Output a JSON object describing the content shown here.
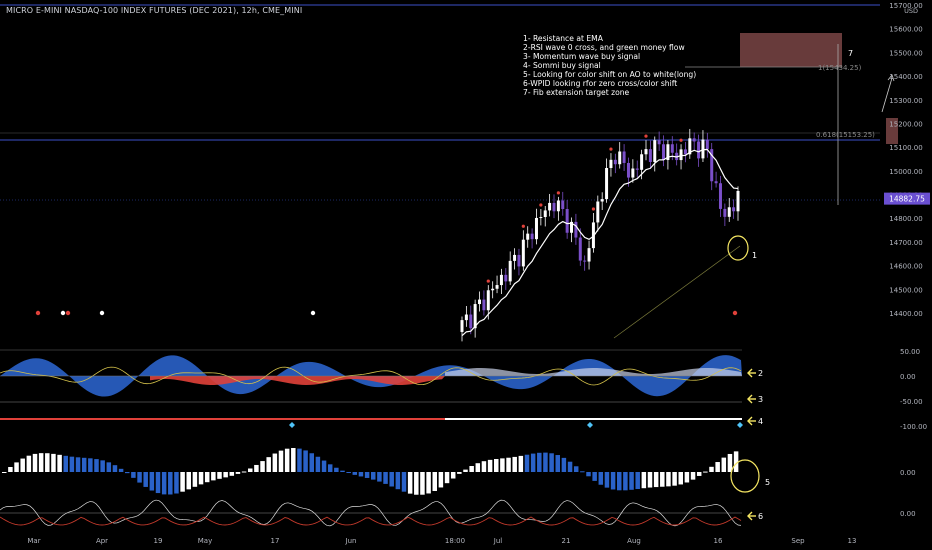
{
  "header": {
    "title": "MICRO E-MINI NASDAQ-100 INDEX FUTURES (DEC 2021), 12h, CME_MINI"
  },
  "annotations": [
    "1- Resistance at EMA",
    "2-RSI wave 0 cross, and green money flow",
    "3- Momentum wave buy signal",
    "4- Sommi buy signal",
    "5- Looking for color shift on AO to white(long)",
    "6-WPID looking rfor zero cross/color shift",
    "7- Fib extension target zone"
  ],
  "chart_labels": {
    "fib_1": "1(15434.25)",
    "fib_0618": "0.618(15153.25)",
    "marker_7": "7",
    "marker_1": "1",
    "marker_2": "2",
    "marker_3": "3",
    "marker_4": "4",
    "marker_5": "5",
    "marker_6": "6"
  },
  "colors": {
    "background": "#000000",
    "up_candle": "#ffffff",
    "down_candle": "#7b4fc9",
    "ema": "#ffffff",
    "wave_blue": "#2a62c9",
    "money_flow_red": "#e0413a",
    "annotation_arrow": "#f5e663",
    "price_tag": "#6a4fd1",
    "target_zone": "#8b4a4a",
    "hline": "#3b4fc7"
  },
  "chart_data": {
    "type": "candlestick",
    "title": "MICRO E-MINI NASDAQ-100 INDEX FUTURES (DEC 2021), 12h, CME_MINI",
    "currency": "USD",
    "last_price": "14882.75",
    "price_axis": {
      "ticks": [
        "15700.00",
        "15600.00",
        "15500.00",
        "15400.00",
        "15300.00",
        "15200.00",
        "15100.00",
        "15000.00",
        "14900.00",
        "14800.00",
        "14700.00",
        "14600.00",
        "14500.00",
        "14400.00"
      ],
      "range": [
        14300,
        15700
      ]
    },
    "x_axis": {
      "ticks": [
        "Mar",
        "Apr",
        "19",
        "May",
        "17",
        "Jun",
        "18:00",
        "Jul",
        "21",
        "Aug",
        "16",
        "Sep",
        "13"
      ]
    },
    "price_series": [
      {
        "x": "Jun 18",
        "close": 14350
      },
      {
        "x": "Jun 21",
        "close": 14420
      },
      {
        "x": "Jun 25",
        "close": 14500
      },
      {
        "x": "Jun 30",
        "close": 14580
      },
      {
        "x": "Jul 5",
        "close": 14680
      },
      {
        "x": "Jul 8",
        "close": 14800
      },
      {
        "x": "Jul 12",
        "close": 14870
      },
      {
        "x": "Jul 15",
        "close": 14780
      },
      {
        "x": "Jul 19",
        "close": 14600
      },
      {
        "x": "Jul 22",
        "close": 14900
      },
      {
        "x": "Jul 26",
        "close": 15080
      },
      {
        "x": "Jul 28",
        "close": 14980
      },
      {
        "x": "Aug 2",
        "close": 15080
      },
      {
        "x": "Aug 6",
        "close": 15100
      },
      {
        "x": "Aug 10",
        "close": 15060
      },
      {
        "x": "Aug 13",
        "close": 15120
      },
      {
        "x": "Aug 16",
        "close": 15080
      },
      {
        "x": "Aug 18",
        "close": 14800
      },
      {
        "x": "Aug 19",
        "close": 14882.75
      }
    ],
    "fib_levels": [
      {
        "label": "1(15434.25)",
        "value": 15434.25
      },
      {
        "label": "0.618(15153.25)",
        "value": 15153.25
      }
    ],
    "target_zone": {
      "low": 15440,
      "high": 15580
    },
    "oscillator_panels": [
      {
        "name": "",
        "ticks": [
          "50.00",
          "0.00",
          "-50.00",
          "-100.00"
        ]
      },
      {
        "name": "",
        "ticks": [
          "0.00"
        ]
      },
      {
        "name": "",
        "ticks": [
          "0.00"
        ]
      }
    ]
  }
}
